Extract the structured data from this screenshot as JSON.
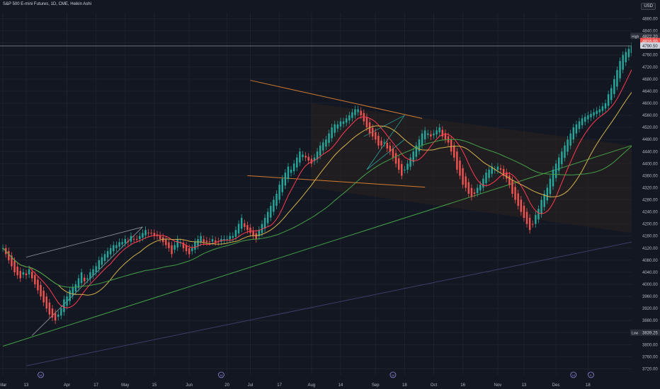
{
  "header": {
    "symbol_title": "S&P 500 E-mini Futures, 1D, CME, Heikin Ashi",
    "currency": "USD"
  },
  "colors": {
    "background": "#131722",
    "up": "#26a69a",
    "down": "#ef5350",
    "grid": "#1e222d",
    "axis_text": "#b2b5be",
    "ma_red": "#ff3b4f",
    "ma_yellow": "#d4b24a",
    "ma_green": "#43a047",
    "trend_orange": "#ff9332",
    "channel_fill": "#2a2221"
  },
  "chart_data": {
    "type": "candlestick",
    "style": "Heikin Ashi",
    "y_axis": {
      "ticks": [
        3720,
        3760,
        3800,
        3840,
        3880,
        3920,
        3960,
        4000,
        4040,
        4080,
        4120,
        4160,
        4200,
        4240,
        4280,
        4320,
        4360,
        4400,
        4440,
        4480,
        4520,
        4560,
        4600,
        4640,
        4680,
        4720,
        4760,
        4800,
        4840,
        4880
      ],
      "ylim": [
        3700,
        4900
      ]
    },
    "x_axis": {
      "ticks": [
        {
          "label": "Mar",
          "x": 0
        },
        {
          "label": "13",
          "x": 8
        },
        {
          "label": "Apr",
          "x": 22
        },
        {
          "label": "17",
          "x": 32
        },
        {
          "label": "May",
          "x": 42
        },
        {
          "label": "15",
          "x": 52
        },
        {
          "label": "Jun",
          "x": 64
        },
        {
          "label": "20",
          "x": 77
        },
        {
          "label": "Jul",
          "x": 85
        },
        {
          "label": "17",
          "x": 95
        },
        {
          "label": "Aug",
          "x": 106
        },
        {
          "label": "14",
          "x": 116
        },
        {
          "label": "Sep",
          "x": 128
        },
        {
          "label": "18",
          "x": 138
        },
        {
          "label": "Oct",
          "x": 148
        },
        {
          "label": "16",
          "x": 158
        },
        {
          "label": "Nov",
          "x": 170
        },
        {
          "label": "13",
          "x": 179
        },
        {
          "label": "Dec",
          "x": 190
        },
        {
          "label": "18",
          "x": 201
        }
      ],
      "xlim": [
        -1,
        216
      ]
    },
    "price_labels": {
      "high_label": "High",
      "high_value": "4822.20",
      "current_1": "4816.00",
      "current_2": "4790.50",
      "low_label": "Low",
      "low_value": "3839.25"
    },
    "events": [
      {
        "label": "16",
        "x": 13
      },
      {
        "label": "16",
        "x": 75
      },
      {
        "label": "16",
        "x": 134
      },
      {
        "label": "16",
        "x": 196
      },
      {
        "label": "E",
        "x": 202
      }
    ],
    "hline": 4790,
    "closes": [
      4120,
      4100,
      4080,
      4060,
      4040,
      4030,
      4020,
      4040,
      4030,
      4050,
      4020,
      4000,
      3980,
      3960,
      3940,
      3920,
      3900,
      3890,
      3880,
      3900,
      3920,
      3950,
      3960,
      3980,
      3990,
      4000,
      4020,
      4040,
      4010,
      4020,
      4040,
      4050,
      4060,
      4080,
      4090,
      4100,
      4110,
      4120,
      4130,
      4130,
      4140,
      4140,
      4150,
      4140,
      4160,
      4150,
      4150,
      4160,
      4170,
      4180,
      4170,
      4170,
      4160,
      4160,
      4150,
      4140,
      4130,
      4120,
      4100,
      4130,
      4150,
      4140,
      4120,
      4110,
      4100,
      4120,
      4140,
      4150,
      4160,
      4140,
      4140,
      4140,
      4150,
      4140,
      4140,
      4150,
      4150,
      4150,
      4160,
      4160,
      4180,
      4200,
      4220,
      4190,
      4180,
      4170,
      4160,
      4150,
      4180,
      4200,
      4220,
      4240,
      4260,
      4280,
      4300,
      4330,
      4350,
      4370,
      4390,
      4380,
      4400,
      4420,
      4440,
      4430,
      4420,
      4410,
      4400,
      4420,
      4440,
      4460,
      4470,
      4480,
      4500,
      4520,
      4530,
      4530,
      4540,
      4540,
      4550,
      4560,
      4570,
      4580,
      4580,
      4560,
      4540,
      4520,
      4500,
      4490,
      4480,
      4460,
      4460,
      4470,
      4450,
      4440,
      4420,
      4400,
      4380,
      4360,
      4380,
      4400,
      4420,
      4440,
      4460,
      4480,
      4500,
      4510,
      4500,
      4490,
      4500,
      4510,
      4520,
      4490,
      4480,
      4470,
      4440,
      4420,
      4380,
      4360,
      4330,
      4320,
      4300,
      4290,
      4300,
      4320,
      4330,
      4350,
      4370,
      4380,
      4390,
      4380,
      4390,
      4380,
      4360,
      4350,
      4330,
      4300,
      4280,
      4260,
      4240,
      4220,
      4200,
      4180,
      4200,
      4230,
      4250,
      4280,
      4300,
      4320,
      4350,
      4380,
      4400,
      4420,
      4440,
      4460,
      4480,
      4500,
      4520,
      4530,
      4540,
      4550,
      4555,
      4560,
      4565,
      4570,
      4575,
      4580,
      4590,
      4600,
      4630,
      4650,
      4680,
      4710,
      4740,
      4760,
      4770,
      4780,
      4790
    ]
  }
}
